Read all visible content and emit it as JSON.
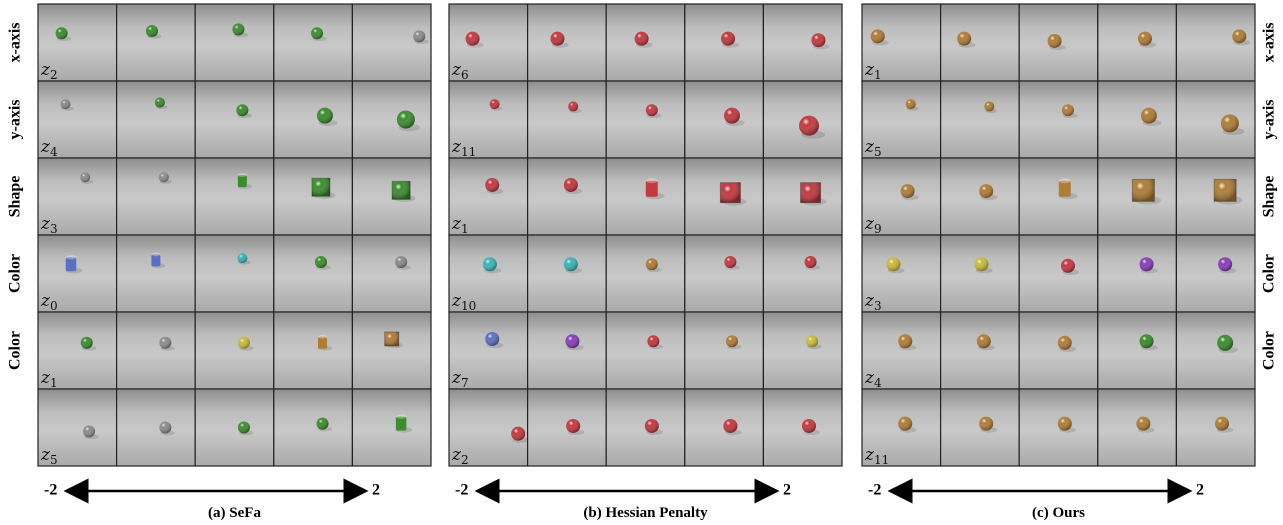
{
  "latent_symbol": "z",
  "row_labels_left": [
    "x-axis",
    "y-axis",
    "Shape",
    "Color",
    "Color"
  ],
  "row_labels_right": [
    "x-axis",
    "y-axis",
    "Shape",
    "Color",
    "Color"
  ],
  "panels": [
    {
      "caption": "(a) SeFa",
      "latents": [
        "2",
        "4",
        "3",
        "0",
        "1",
        "5"
      ],
      "range_start": "-2",
      "range_end": "2"
    },
    {
      "caption": "(b) Hessian Penalty",
      "latents": [
        "6",
        "11",
        "1",
        "10",
        "7",
        "2"
      ],
      "range_start": "-2",
      "range_end": "2"
    },
    {
      "caption": "(c) Ours",
      "latents": [
        "1",
        "5",
        "9",
        "3",
        "4",
        "11"
      ],
      "range_start": "-2",
      "range_end": "2"
    }
  ]
}
